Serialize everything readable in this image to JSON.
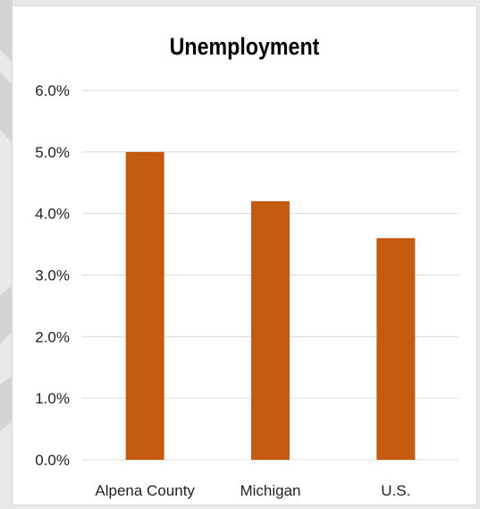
{
  "chart_data": {
    "type": "bar",
    "title": "Unemployment",
    "categories": [
      "Alpena County",
      "Michigan",
      "U.S."
    ],
    "values": [
      5.0,
      4.2,
      3.6
    ],
    "value_unit": "%",
    "ylim": [
      0,
      6
    ],
    "yticks": [
      "0.0%",
      "1.0%",
      "2.0%",
      "3.0%",
      "4.0%",
      "5.0%",
      "6.0%"
    ],
    "ytick_values": [
      0,
      1,
      2,
      3,
      4,
      5,
      6
    ],
    "xlabel": "",
    "ylabel": "",
    "grid": true,
    "legend": "none",
    "colors": {
      "bar": "#c55a11",
      "gridline": "#d9d9d9",
      "background": "#ffffff",
      "page_background": "#e9e9e9"
    }
  }
}
